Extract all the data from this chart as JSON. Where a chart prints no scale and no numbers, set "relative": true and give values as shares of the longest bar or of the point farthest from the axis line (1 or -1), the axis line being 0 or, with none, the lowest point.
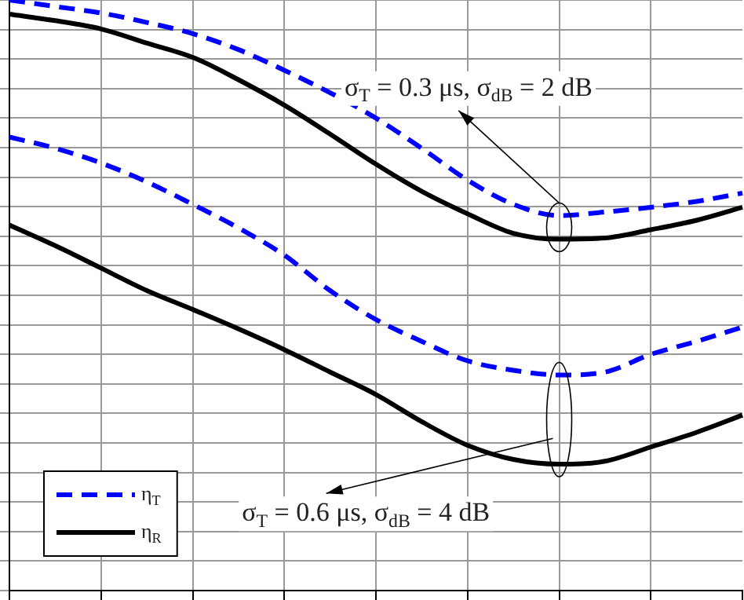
{
  "chart_data": {
    "type": "line",
    "relative": true,
    "grid": true,
    "legend": "bottom left",
    "marker": "none",
    "categories": [
      null,
      null,
      null,
      null,
      null,
      null,
      null,
      null,
      null,
      null,
      null,
      null,
      null,
      null,
      null,
      null,
      null
    ],
    "series": [
      {
        "name": "η$_{T}$",
        "color": "#0000ff",
        "line_style": "dashed",
        "values": [
          1.0,
          0.989,
          0.978,
          0.962,
          0.943,
          0.916,
          0.881,
          0.843,
          0.8,
          0.749,
          0.695,
          0.654,
          0.635,
          0.641,
          0.649,
          0.659,
          0.673
        ]
      },
      {
        "name": "η$_{R}$",
        "color": "#000000",
        "line_style": "solid",
        "values": [
          0.976,
          0.965,
          0.951,
          0.927,
          0.903,
          0.865,
          0.822,
          0.773,
          0.722,
          0.676,
          0.638,
          0.605,
          0.595,
          0.597,
          0.611,
          0.627,
          0.649
        ]
      },
      {
        "color": "#0000ff",
        "line_style": "dashed",
        "values": [
          0.768,
          0.749,
          0.724,
          0.692,
          0.654,
          0.614,
          0.568,
          0.508,
          0.459,
          0.422,
          0.389,
          0.373,
          0.365,
          0.37,
          0.4,
          0.422,
          0.446
        ]
      },
      {
        "color": "#000000",
        "line_style": "solid",
        "values": [
          0.619,
          0.584,
          0.546,
          0.508,
          0.476,
          0.443,
          0.408,
          0.37,
          0.332,
          0.286,
          0.246,
          0.222,
          0.214,
          0.219,
          0.243,
          0.268,
          0.297
        ]
      }
    ],
    "annotations": [
      "σ$_{T}$ = 0.3 μs, σ$_{dB}$ = 2 dB",
      "σ$_{T}$ = 0.6 μs, σ$_{dB}$ = 4 dB"
    ]
  }
}
